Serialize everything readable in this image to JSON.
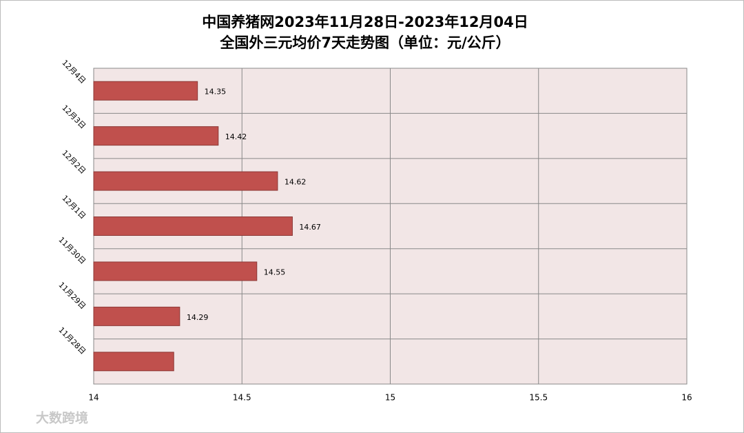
{
  "chart_data": {
    "type": "bar",
    "orientation": "horizontal",
    "title": "中国养猪网2023年11月28日-2023年12月04日",
    "subtitle": "全国外三元均价7天走势图（单位：元/公斤）",
    "categories": [
      "12月4日",
      "12月3日",
      "12月2日",
      "12月1日",
      "11月30日",
      "11月29日",
      "11月28日"
    ],
    "values": [
      14.35,
      14.42,
      14.62,
      14.67,
      14.55,
      14.29,
      14.27
    ],
    "value_labels": [
      "14.35",
      "14.42",
      "14.62",
      "14.67",
      "14.55",
      "14.29",
      null
    ],
    "color": "#c0504d",
    "xlim": [
      14,
      16
    ],
    "xticks": [
      14,
      14.5,
      15,
      15.5,
      16
    ],
    "grid": true
  },
  "watermark": "大数跨境"
}
